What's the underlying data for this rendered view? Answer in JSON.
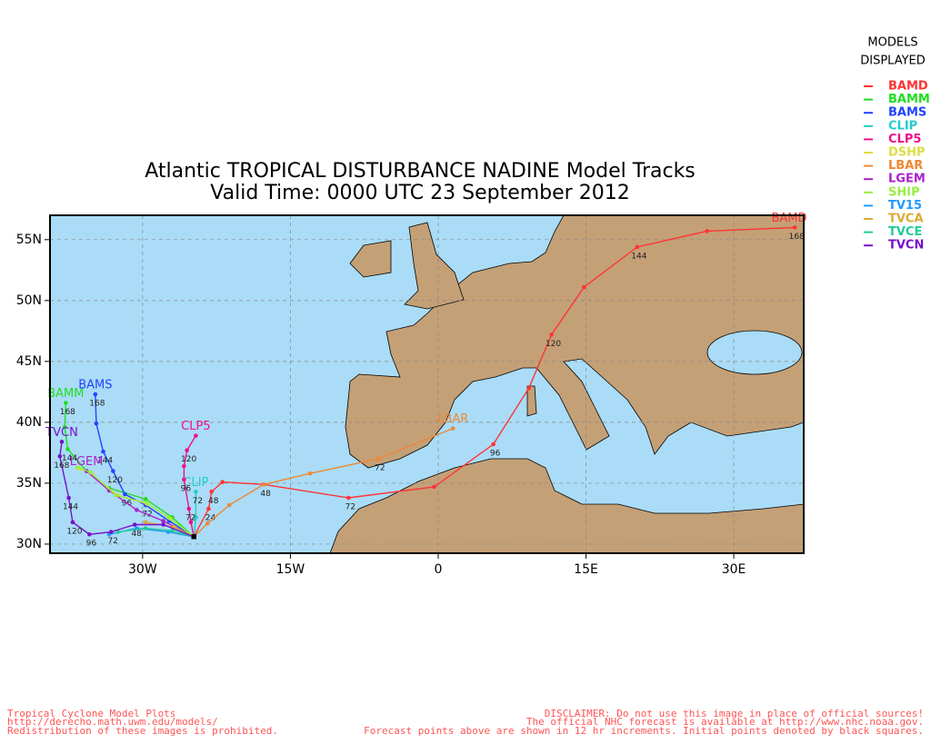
{
  "chart_data": {
    "type": "track-map",
    "title": "Atlantic TROPICAL DISTURBANCE NADINE Model Tracks",
    "subtitle": "Valid Time: 0000 UTC 23 September 2012",
    "legend_title": [
      "MODELS",
      "DISPLAYED"
    ],
    "xlim": [
      -39.4,
      37.1
    ],
    "ylim": [
      29.25,
      57.0
    ],
    "xticks": [
      {
        "value": -30,
        "label": "30W"
      },
      {
        "value": -15,
        "label": "15W"
      },
      0,
      {
        "value": 15,
        "label": "15E"
      },
      {
        "value": 30,
        "label": "30E"
      }
    ],
    "yticks": [
      {
        "value": 30,
        "label": "30N"
      },
      {
        "value": 35,
        "label": "35N"
      },
      {
        "value": 40,
        "label": "40N"
      },
      {
        "value": 45,
        "label": "45N"
      },
      {
        "value": 50,
        "label": "50N"
      },
      {
        "value": 55,
        "label": "55N"
      }
    ],
    "grid": true,
    "series": [
      {
        "name": "BAMD",
        "color": "#ff3333",
        "label_on_map": true,
        "x": [
          -24.8,
          -23.3,
          -23.0,
          -21.9,
          -17.7,
          -9.1,
          -0.4,
          5.6,
          9.2,
          11.5,
          14.8,
          20.2,
          27.3,
          36.2
        ],
        "values": [
          30.6,
          32.9,
          34.3,
          35.1,
          34.9,
          33.8,
          34.7,
          38.2,
          42.8,
          47.2,
          51.1,
          54.4,
          55.7,
          56.0
        ],
        "point_labels": [
          null,
          24,
          48,
          null,
          null,
          72,
          null,
          96,
          null,
          120,
          null,
          144,
          null,
          168
        ]
      },
      {
        "name": "BAMM",
        "color": "#22dd22",
        "label_on_map": true,
        "x": [
          -24.8,
          -27.0,
          -29.7,
          -33.4,
          -35.7,
          -37.6,
          -37.9,
          -37.8
        ],
        "values": [
          30.6,
          32.2,
          33.7,
          34.6,
          36.0,
          37.8,
          39.6,
          41.6
        ],
        "point_labels": [
          null,
          null,
          null,
          null,
          null,
          144,
          null,
          168
        ]
      },
      {
        "name": "BAMS",
        "color": "#2244ff",
        "label_on_map": true,
        "x": [
          -24.8,
          -27.3,
          -29.7,
          -31.8,
          -33.0,
          -34.0,
          -34.7,
          -34.8
        ],
        "values": [
          30.6,
          31.9,
          33.2,
          34.1,
          36.0,
          37.6,
          39.9,
          42.3
        ],
        "point_labels": [
          null,
          null,
          72,
          96,
          120,
          144,
          null,
          168
        ]
      },
      {
        "name": "CLIP",
        "color": "#22cccc",
        "label_on_map": true,
        "x": [
          -24.8,
          -24.6,
          -24.6
        ],
        "values": [
          30.6,
          32.2,
          34.3
        ],
        "point_labels": [
          null,
          null,
          72
        ]
      },
      {
        "name": "CLP5",
        "color": "#ee1188",
        "label_on_map": true,
        "x": [
          -24.8,
          -25.1,
          -25.3,
          -25.8,
          -25.8,
          -25.5,
          -24.6
        ],
        "values": [
          30.6,
          31.8,
          32.9,
          35.3,
          36.4,
          37.7,
          38.9
        ],
        "point_labels": [
          null,
          null,
          72,
          96,
          null,
          120,
          null
        ]
      },
      {
        "name": "DSHP",
        "color": "#dddd44",
        "x": [
          -24.8,
          -27.2,
          -29.5,
          -32.5,
          -35.1,
          -36.4
        ],
        "values": [
          30.6,
          32.1,
          33.3,
          34.0,
          35.7,
          36.2
        ]
      },
      {
        "name": "LBAR",
        "color": "#ee8833",
        "label_on_map": true,
        "x": [
          -24.8,
          -23.4,
          -21.2,
          -17.7,
          -13.0,
          -6.1,
          1.5
        ],
        "values": [
          30.6,
          31.7,
          33.2,
          34.9,
          35.8,
          37.0,
          39.5
        ],
        "point_labels": [
          null,
          null,
          null,
          48,
          null,
          72,
          null
        ]
      },
      {
        "name": "LGEM",
        "color": "#aa22cc",
        "label_on_map": true,
        "x": [
          -24.8,
          -27.9,
          -30.6,
          -33.4,
          -35.7
        ],
        "values": [
          30.6,
          31.9,
          32.8,
          34.4,
          36.0
        ]
      },
      {
        "name": "SHIP",
        "color": "#99ee44",
        "x": [
          -24.8,
          -27.4,
          -29.7,
          -32.7,
          -35.3,
          -36.6
        ],
        "values": [
          30.6,
          32.2,
          33.4,
          34.0,
          35.9,
          36.3
        ]
      },
      {
        "name": "TV15",
        "color": "#2299ff",
        "x": [
          -24.8,
          -27.4,
          -30.6,
          -33.4
        ],
        "values": [
          30.6,
          31.0,
          31.3,
          30.8
        ]
      },
      {
        "name": "TVCA",
        "color": "#ddaa33",
        "x": [
          -24.8,
          -26.8,
          -29.7
        ],
        "values": [
          30.6,
          31.4,
          31.8
        ]
      },
      {
        "name": "TVCE",
        "color": "#22cc99",
        "x": [
          -24.8,
          -27.0,
          -29.7,
          -32.5
        ],
        "values": [
          30.6,
          31.1,
          31.3,
          31.0
        ]
      },
      {
        "name": "TVCN",
        "color": "#7711cc",
        "label_on_map": true,
        "x": [
          -24.8,
          -27.9,
          -30.8,
          -33.2,
          -35.4,
          -37.1,
          -37.5,
          -38.4,
          -38.2
        ],
        "values": [
          30.6,
          31.6,
          31.6,
          31.0,
          30.8,
          31.8,
          33.8,
          37.2,
          38.4
        ],
        "point_labels": [
          null,
          null,
          48,
          72,
          96,
          120,
          144,
          168,
          null
        ]
      }
    ],
    "footer_left": [
      "Tropical Cyclone Model Plots",
      "http://derecho.math.uwm.edu/models/",
      "Redistribution of these images is prohibited."
    ],
    "footer_right": [
      "DISCLAIMER: Do not use this image in place of official sources!",
      "The official NHC forecast is available at http://www.nhc.noaa.gov.",
      "Forecast points above are shown in 12 hr increments. Initial points denoted by black squares."
    ]
  }
}
